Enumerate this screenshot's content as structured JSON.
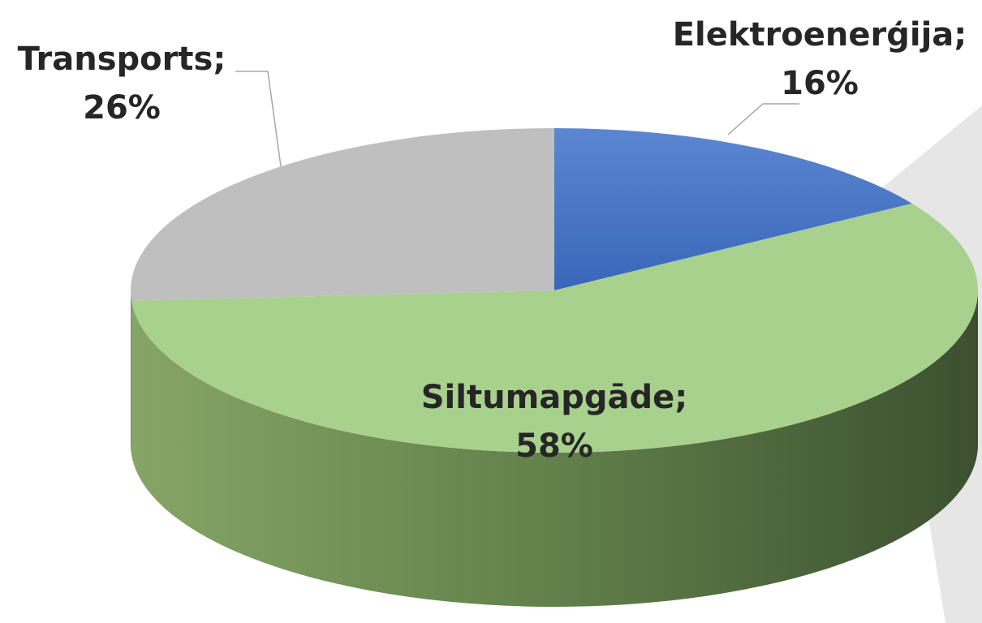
{
  "chart_data": {
    "type": "pie3d",
    "categories": [
      "Elektroenerģija;",
      "Siltumapgāde;",
      "Transports;"
    ],
    "values": [
      16,
      58,
      26
    ],
    "value_labels": [
      "16%",
      "58%",
      "26%"
    ],
    "colors": [
      "#4472c4",
      "#a9d18e",
      "#bfbfbf"
    ]
  }
}
